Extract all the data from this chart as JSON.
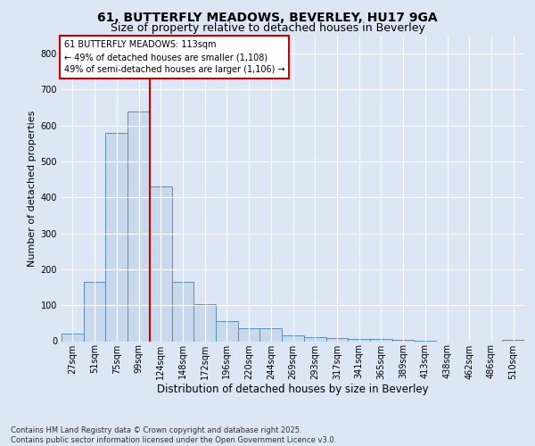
{
  "title_line1": "61, BUTTERFLY MEADOWS, BEVERLEY, HU17 9GA",
  "title_line2": "Size of property relative to detached houses in Beverley",
  "xlabel": "Distribution of detached houses by size in Beverley",
  "ylabel": "Number of detached properties",
  "footer_line1": "Contains HM Land Registry data © Crown copyright and database right 2025.",
  "footer_line2": "Contains public sector information licensed under the Open Government Licence v3.0.",
  "annotation_line1": "61 BUTTERFLY MEADOWS: 113sqm",
  "annotation_line2": "← 49% of detached houses are smaller (1,108)",
  "annotation_line3": "49% of semi-detached houses are larger (1,106) →",
  "bar_color": "#c9d9ed",
  "bar_edge_color": "#5b8db8",
  "vline_color": "#cc0000",
  "background_color": "#dce6f5",
  "plot_bg_color": "#dce6f5",
  "annotation_box_edge": "#cc0000",
  "annotation_box_face": "#ffffff",
  "categories": [
    "27sqm",
    "51sqm",
    "75sqm",
    "99sqm",
    "124sqm",
    "148sqm",
    "172sqm",
    "196sqm",
    "220sqm",
    "244sqm",
    "269sqm",
    "293sqm",
    "317sqm",
    "341sqm",
    "365sqm",
    "389sqm",
    "413sqm",
    "438sqm",
    "462sqm",
    "486sqm",
    "510sqm"
  ],
  "values": [
    20,
    165,
    580,
    640,
    430,
    165,
    103,
    57,
    35,
    35,
    15,
    10,
    8,
    5,
    5,
    4,
    2,
    0,
    0,
    0,
    3
  ],
  "vline_x_index": 3.5,
  "ylim": [
    0,
    850
  ],
  "yticks": [
    0,
    100,
    200,
    300,
    400,
    500,
    600,
    700,
    800
  ],
  "title_fontsize": 10,
  "subtitle_fontsize": 9,
  "ylabel_fontsize": 8,
  "xlabel_fontsize": 8.5,
  "tick_fontsize": 7,
  "annotation_fontsize": 7,
  "footer_fontsize": 6
}
